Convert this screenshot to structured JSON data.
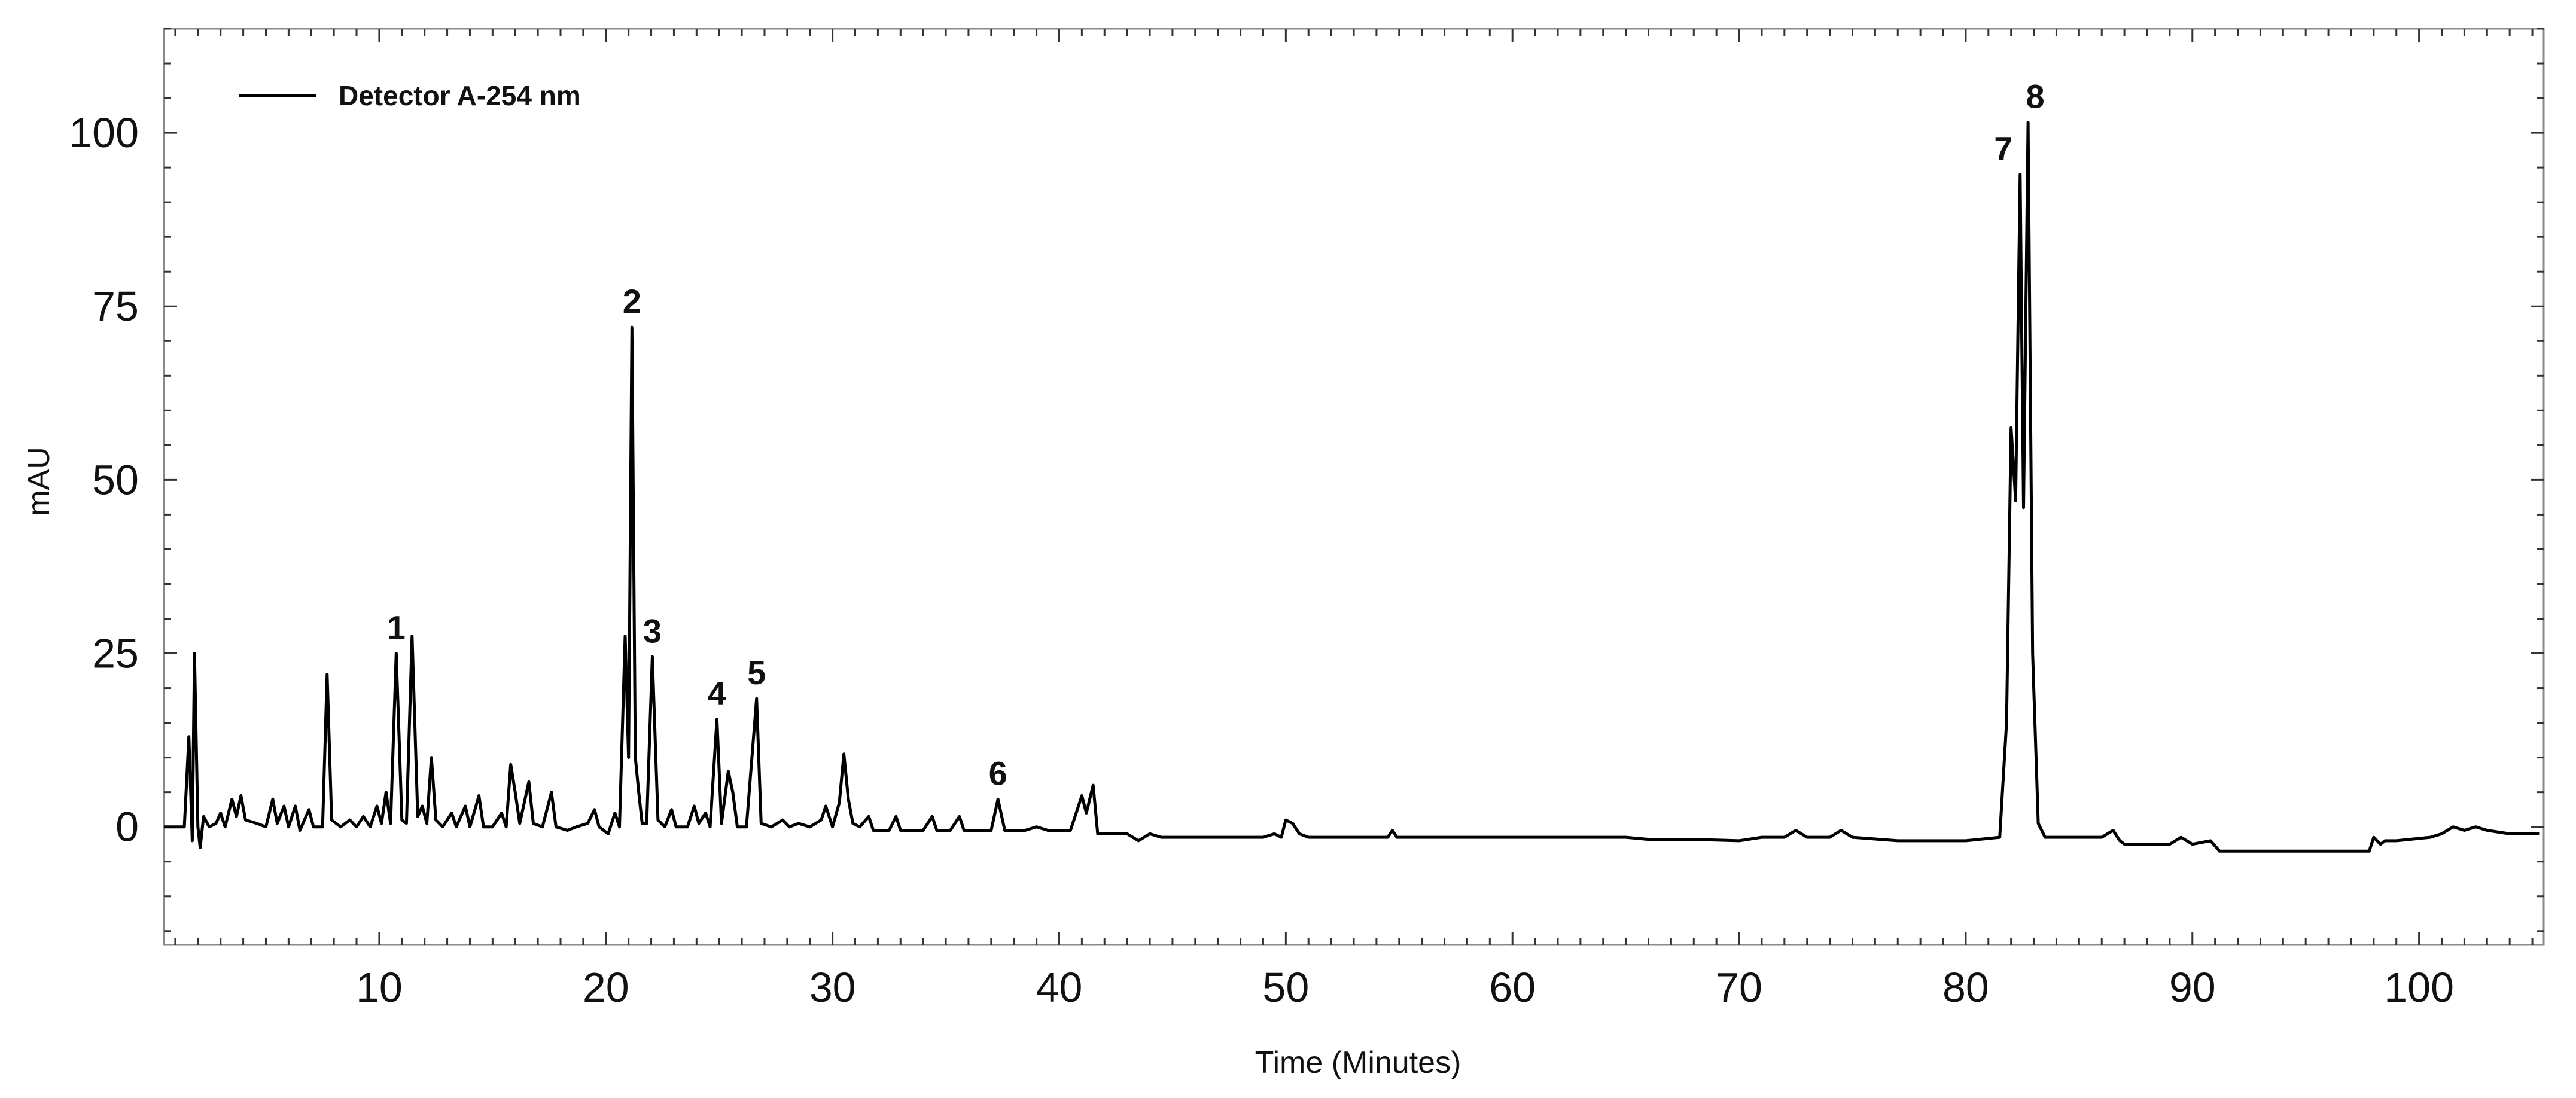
{
  "chart_data": {
    "type": "line",
    "title": "",
    "xlabel": "Time (Minutes)",
    "ylabel": "mAU",
    "xlim": [
      0.5,
      105.5
    ],
    "ylim": [
      -17,
      115
    ],
    "x_ticks": [
      10,
      20,
      30,
      40,
      50,
      60,
      70,
      80,
      90,
      100
    ],
    "y_ticks": [
      0,
      25,
      50,
      75,
      100
    ],
    "grid": false,
    "legend": {
      "position": "top-left",
      "entries": [
        "Detector A-254 nm"
      ]
    },
    "line_color": "#000000",
    "series": [
      {
        "name": "Detector A-254 nm",
        "points": [
          [
            0.5,
            0
          ],
          [
            1.4,
            0
          ],
          [
            1.6,
            13
          ],
          [
            1.75,
            -2
          ],
          [
            1.85,
            25
          ],
          [
            2.0,
            0
          ],
          [
            2.1,
            -3
          ],
          [
            2.25,
            1.5
          ],
          [
            2.5,
            0
          ],
          [
            2.8,
            0.5
          ],
          [
            3.0,
            2
          ],
          [
            3.2,
            0
          ],
          [
            3.5,
            4
          ],
          [
            3.7,
            1.5
          ],
          [
            3.9,
            4.5
          ],
          [
            4.1,
            1
          ],
          [
            4.6,
            0.5
          ],
          [
            5.0,
            0
          ],
          [
            5.3,
            4
          ],
          [
            5.5,
            0.5
          ],
          [
            5.8,
            3
          ],
          [
            6.0,
            0
          ],
          [
            6.3,
            3
          ],
          [
            6.5,
            -0.5
          ],
          [
            6.9,
            2.5
          ],
          [
            7.1,
            0
          ],
          [
            7.5,
            0
          ],
          [
            7.7,
            22
          ],
          [
            7.9,
            1
          ],
          [
            8.3,
            0
          ],
          [
            8.7,
            1
          ],
          [
            9.0,
            0
          ],
          [
            9.3,
            1.5
          ],
          [
            9.6,
            0
          ],
          [
            9.9,
            3
          ],
          [
            10.1,
            0.5
          ],
          [
            10.3,
            5
          ],
          [
            10.5,
            0.5
          ],
          [
            10.75,
            25
          ],
          [
            11.0,
            1
          ],
          [
            11.2,
            0.5
          ],
          [
            11.45,
            27.5
          ],
          [
            11.7,
            1.5
          ],
          [
            11.9,
            3
          ],
          [
            12.1,
            0.5
          ],
          [
            12.3,
            10
          ],
          [
            12.5,
            1
          ],
          [
            12.8,
            0
          ],
          [
            13.2,
            2
          ],
          [
            13.4,
            0
          ],
          [
            13.8,
            3
          ],
          [
            14.0,
            0
          ],
          [
            14.4,
            4.5
          ],
          [
            14.6,
            0
          ],
          [
            15.0,
            0
          ],
          [
            15.4,
            2
          ],
          [
            15.6,
            0
          ],
          [
            15.8,
            9
          ],
          [
            16.0,
            5
          ],
          [
            16.2,
            0.5
          ],
          [
            16.6,
            6.5
          ],
          [
            16.8,
            0.5
          ],
          [
            17.2,
            0
          ],
          [
            17.6,
            5
          ],
          [
            17.8,
            0
          ],
          [
            18.3,
            -0.5
          ],
          [
            18.7,
            0
          ],
          [
            19.2,
            0.5
          ],
          [
            19.5,
            2.5
          ],
          [
            19.7,
            0
          ],
          [
            20.1,
            -1
          ],
          [
            20.4,
            2
          ],
          [
            20.6,
            0
          ],
          [
            20.85,
            27.5
          ],
          [
            21.0,
            10
          ],
          [
            21.15,
            72
          ],
          [
            21.3,
            10
          ],
          [
            21.45,
            5
          ],
          [
            21.6,
            0.5
          ],
          [
            21.8,
            0.5
          ],
          [
            22.05,
            24.5
          ],
          [
            22.3,
            1
          ],
          [
            22.6,
            0
          ],
          [
            22.9,
            2.5
          ],
          [
            23.1,
            0
          ],
          [
            23.6,
            0
          ],
          [
            23.9,
            3
          ],
          [
            24.1,
            0.5
          ],
          [
            24.4,
            2
          ],
          [
            24.6,
            0
          ],
          [
            24.9,
            15.5
          ],
          [
            25.1,
            0.5
          ],
          [
            25.4,
            8
          ],
          [
            25.6,
            5
          ],
          [
            25.8,
            0
          ],
          [
            26.2,
            0
          ],
          [
            26.65,
            18.5
          ],
          [
            26.85,
            0.5
          ],
          [
            27.3,
            0
          ],
          [
            27.8,
            1
          ],
          [
            28.1,
            0
          ],
          [
            28.5,
            0.5
          ],
          [
            29.0,
            0
          ],
          [
            29.5,
            1
          ],
          [
            29.7,
            3
          ],
          [
            30.0,
            0
          ],
          [
            30.3,
            3.5
          ],
          [
            30.5,
            10.5
          ],
          [
            30.7,
            4
          ],
          [
            30.9,
            0.5
          ],
          [
            31.2,
            0
          ],
          [
            31.6,
            1.5
          ],
          [
            31.8,
            -0.5
          ],
          [
            32.5,
            -0.5
          ],
          [
            32.8,
            1.5
          ],
          [
            33.0,
            -0.5
          ],
          [
            34.0,
            -0.5
          ],
          [
            34.4,
            1.5
          ],
          [
            34.6,
            -0.5
          ],
          [
            35.2,
            -0.5
          ],
          [
            35.6,
            1.5
          ],
          [
            35.8,
            -0.5
          ],
          [
            37.0,
            -0.5
          ],
          [
            37.3,
            4
          ],
          [
            37.6,
            -0.5
          ],
          [
            38.5,
            -0.5
          ],
          [
            39.0,
            0
          ],
          [
            39.5,
            -0.5
          ],
          [
            40.5,
            -0.5
          ],
          [
            41.0,
            4.5
          ],
          [
            41.2,
            2
          ],
          [
            41.5,
            6
          ],
          [
            41.7,
            -1
          ],
          [
            43.0,
            -1
          ],
          [
            43.5,
            -2
          ],
          [
            44.0,
            -1
          ],
          [
            44.5,
            -1.5
          ],
          [
            45.0,
            -1.5
          ],
          [
            47.0,
            -1.5
          ],
          [
            49.0,
            -1.5
          ],
          [
            49.5,
            -1
          ],
          [
            49.8,
            -1.5
          ],
          [
            50.0,
            1
          ],
          [
            50.3,
            0.5
          ],
          [
            50.6,
            -1
          ],
          [
            51.0,
            -1.5
          ],
          [
            54.5,
            -1.5
          ],
          [
            54.7,
            -0.5
          ],
          [
            54.9,
            -1.5
          ],
          [
            56.0,
            -1.5
          ],
          [
            60.0,
            -1.5
          ],
          [
            65.0,
            -1.5
          ],
          [
            66.0,
            -1.8
          ],
          [
            68.0,
            -1.8
          ],
          [
            70.0,
            -2
          ],
          [
            71.0,
            -1.5
          ],
          [
            72.0,
            -1.5
          ],
          [
            72.5,
            -0.5
          ],
          [
            73.0,
            -1.5
          ],
          [
            74.0,
            -1.5
          ],
          [
            74.5,
            -0.5
          ],
          [
            75.0,
            -1.5
          ],
          [
            77.0,
            -2
          ],
          [
            80.0,
            -2
          ],
          [
            81.5,
            -1.5
          ],
          [
            81.8,
            15
          ],
          [
            82.0,
            57.5
          ],
          [
            82.2,
            47
          ],
          [
            82.4,
            94
          ],
          [
            82.55,
            46
          ],
          [
            82.75,
            101.5
          ],
          [
            82.95,
            25
          ],
          [
            83.2,
            0.5
          ],
          [
            83.5,
            -1.5
          ],
          [
            84.0,
            -1.5
          ],
          [
            85.0,
            -1.5
          ],
          [
            86.0,
            -1.5
          ],
          [
            86.5,
            -0.5
          ],
          [
            86.8,
            -2
          ],
          [
            87.0,
            -2.5
          ],
          [
            89.0,
            -2.5
          ],
          [
            89.5,
            -1.5
          ],
          [
            90.0,
            -2.5
          ],
          [
            90.8,
            -2
          ],
          [
            91.2,
            -3.5
          ],
          [
            95.0,
            -3.5
          ],
          [
            97.8,
            -3.5
          ],
          [
            98.0,
            -1.5
          ],
          [
            98.3,
            -2.5
          ],
          [
            98.5,
            -2
          ],
          [
            99.0,
            -2
          ],
          [
            100.5,
            -1.5
          ],
          [
            101.0,
            -1
          ],
          [
            101.5,
            0
          ],
          [
            102.0,
            -0.5
          ],
          [
            102.5,
            0
          ],
          [
            103.0,
            -0.5
          ],
          [
            104.0,
            -1
          ],
          [
            105.3,
            -1
          ]
        ]
      }
    ],
    "annotations": [
      {
        "label": "1",
        "x": 10.75,
        "y": 25
      },
      {
        "label": "2",
        "x": 21.15,
        "y": 72
      },
      {
        "label": "3",
        "x": 22.05,
        "y": 24.5
      },
      {
        "label": "4",
        "x": 24.9,
        "y": 15.5
      },
      {
        "label": "5",
        "x": 26.65,
        "y": 18.5
      },
      {
        "label": "6",
        "x": 37.3,
        "y": 4
      },
      {
        "label": "7",
        "x": 82.4,
        "y": 94
      },
      {
        "label": "8",
        "x": 82.75,
        "y": 101.5
      }
    ]
  }
}
